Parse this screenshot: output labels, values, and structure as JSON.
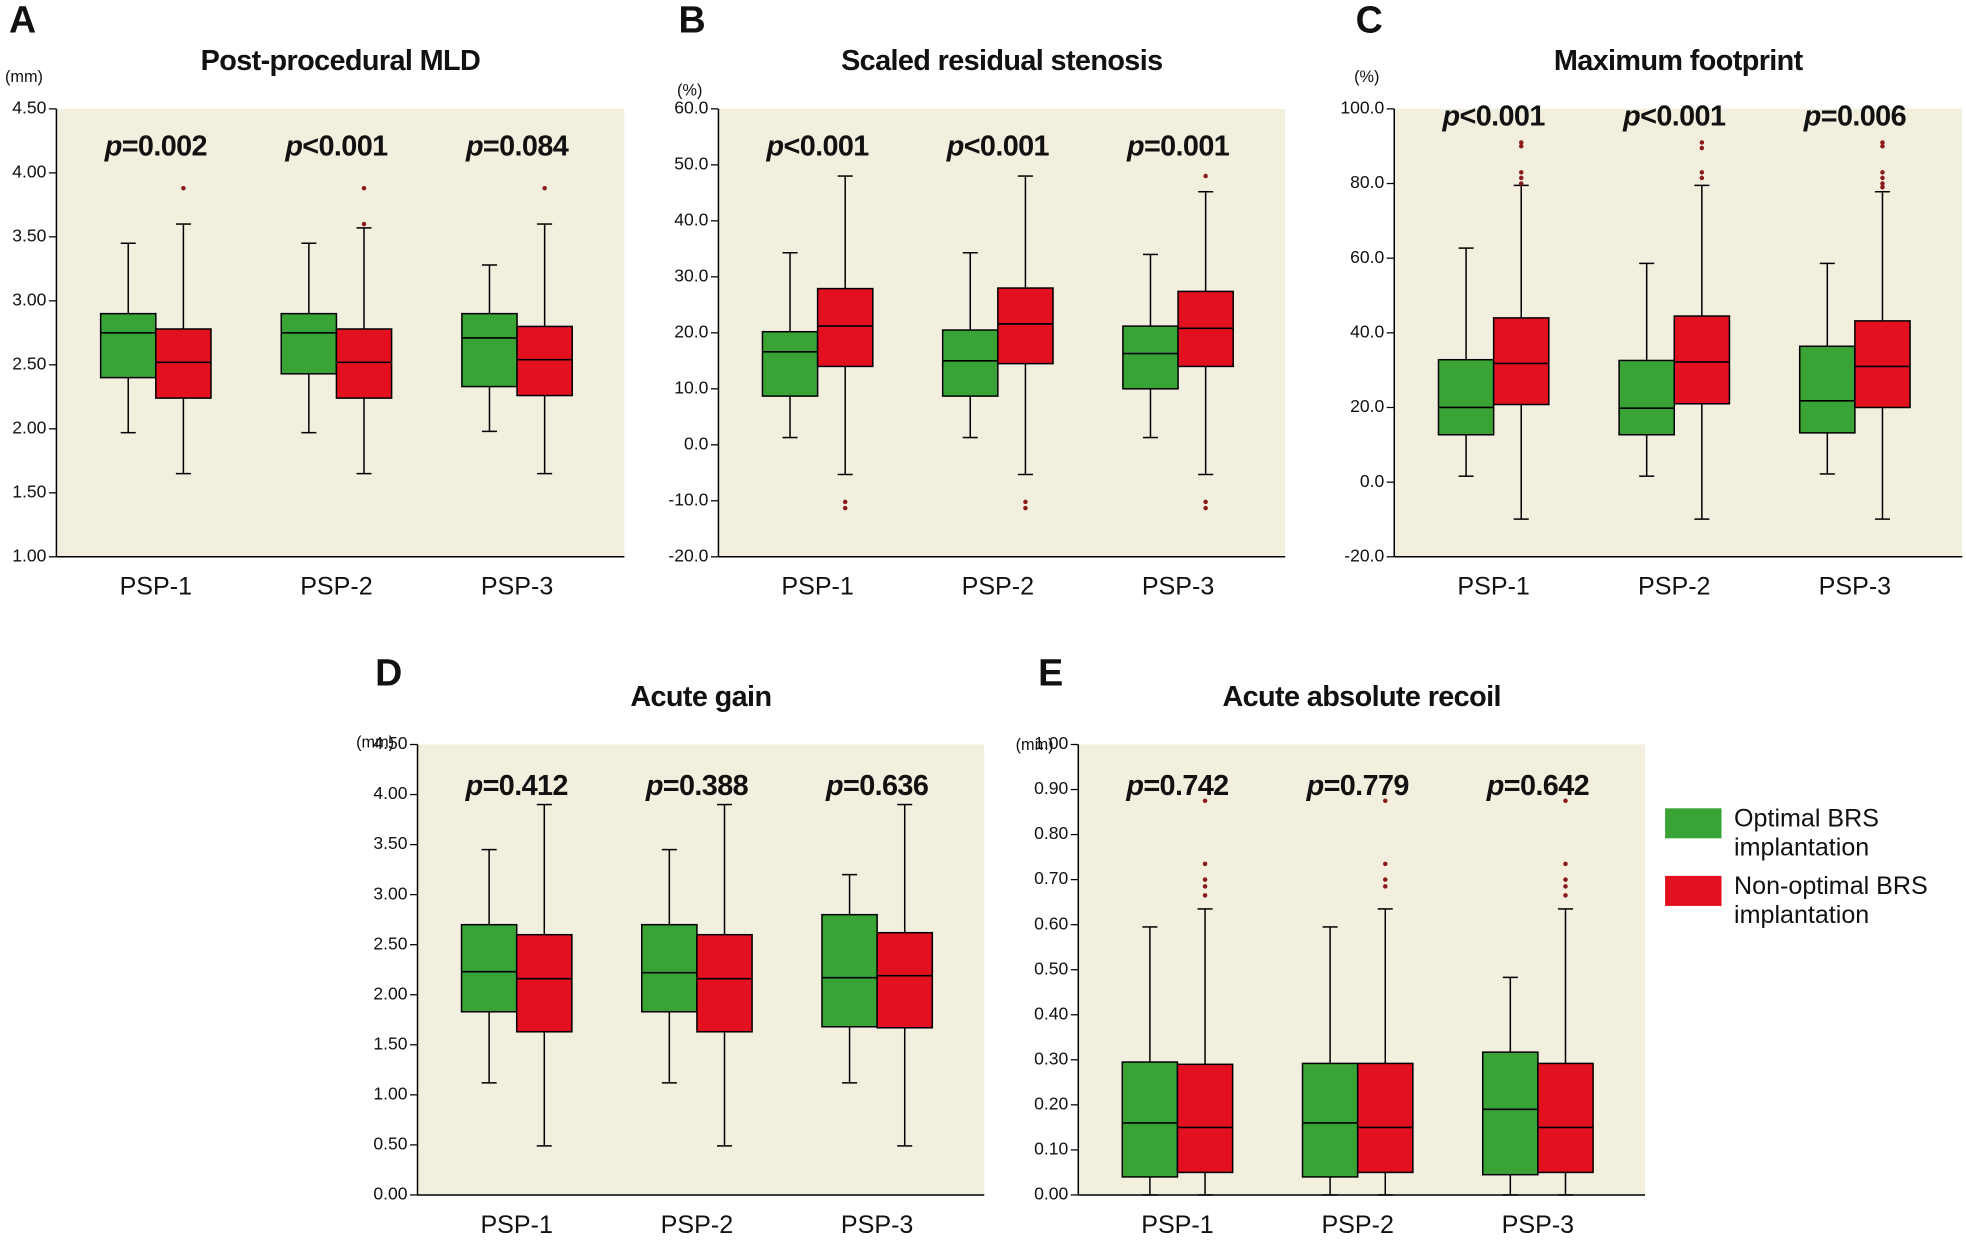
{
  "chart_data": [
    {
      "type": "box",
      "panel": "A",
      "title": "Post-procedural MLD",
      "y_label": "(mm)",
      "categories": [
        "PSP-1",
        "PSP-2",
        "PSP-3"
      ],
      "annotations": [
        "p=0.002",
        "p<0.001",
        "p=0.084"
      ],
      "ylim": [
        1.0,
        4.5
      ],
      "yticks": [
        {
          "value": 1.0,
          "label": "1.00"
        },
        {
          "value": 1.5,
          "label": "1.50"
        },
        {
          "value": 2.0,
          "label": "2.00"
        },
        {
          "value": 2.5,
          "label": "2.50"
        },
        {
          "value": 3.0,
          "label": "3.00"
        },
        {
          "value": 3.5,
          "label": "3.50"
        },
        {
          "value": 4.0,
          "label": "4.00"
        },
        {
          "value": 4.5,
          "label": "4.50"
        }
      ],
      "series": [
        {
          "color": "#3aa335",
          "values": [
            {
              "min": 1.97,
              "q1": 2.4,
              "median": 2.75,
              "q3": 2.9,
              "max": 3.45,
              "outliers": []
            },
            {
              "min": 1.97,
              "q1": 2.43,
              "median": 2.75,
              "q3": 2.9,
              "max": 3.45,
              "outliers": []
            },
            {
              "min": 1.98,
              "q1": 2.33,
              "median": 2.71,
              "q3": 2.9,
              "max": 3.28,
              "outliers": []
            }
          ]
        },
        {
          "color": "#e3111f",
          "values": [
            {
              "min": 1.65,
              "q1": 2.24,
              "median": 2.52,
              "q3": 2.78,
              "max": 3.6,
              "outliers": [
                3.88
              ]
            },
            {
              "min": 1.65,
              "q1": 2.24,
              "median": 2.52,
              "q3": 2.78,
              "max": 3.57,
              "outliers": [
                3.88,
                3.6
              ]
            },
            {
              "min": 1.65,
              "q1": 2.26,
              "median": 2.54,
              "q3": 2.8,
              "max": 3.6,
              "outliers": [
                3.88
              ]
            }
          ]
        }
      ]
    },
    {
      "type": "box",
      "panel": "B",
      "title": "Scaled residual stenosis",
      "y_label": "(%)",
      "categories": [
        "PSP-1",
        "PSP-2",
        "PSP-3"
      ],
      "annotations": [
        "p<0.001",
        "p<0.001",
        "p=0.001"
      ],
      "ylim": [
        -20,
        60
      ],
      "yticks": [
        {
          "value": -20,
          "label": "-20.0"
        },
        {
          "value": -10,
          "label": "-10.0"
        },
        {
          "value": 0,
          "label": "0.0"
        },
        {
          "value": 10,
          "label": "10.0"
        },
        {
          "value": 20,
          "label": "20.0"
        },
        {
          "value": 30,
          "label": "30.0"
        },
        {
          "value": 40,
          "label": "40.0"
        },
        {
          "value": 50,
          "label": "50.0"
        },
        {
          "value": 60,
          "label": "60.0"
        }
      ],
      "series": [
        {
          "color": "#3aa335",
          "values": [
            {
              "min": 1.3,
              "q1": 8.7,
              "median": 16.6,
              "q3": 20.2,
              "max": 34.3,
              "outliers": []
            },
            {
              "min": 1.3,
              "q1": 8.7,
              "median": 15.0,
              "q3": 20.5,
              "max": 34.3,
              "outliers": []
            },
            {
              "min": 1.3,
              "q1": 10.0,
              "median": 16.3,
              "q3": 21.2,
              "max": 34.0,
              "outliers": []
            }
          ]
        },
        {
          "color": "#e3111f",
          "values": [
            {
              "min": -5.3,
              "q1": 14.0,
              "median": 21.2,
              "q3": 27.9,
              "max": 48.0,
              "outliers": [
                -10.2,
                -11.3
              ]
            },
            {
              "min": -5.3,
              "q1": 14.5,
              "median": 21.6,
              "q3": 28.0,
              "max": 48.0,
              "outliers": [
                -10.2,
                -11.3
              ]
            },
            {
              "min": -5.3,
              "q1": 14.0,
              "median": 20.8,
              "q3": 27.4,
              "max": 45.2,
              "outliers": [
                48.0,
                -10.2,
                -11.3
              ]
            }
          ]
        }
      ]
    },
    {
      "type": "box",
      "panel": "C",
      "title": "Maximum footprint",
      "y_label": "(%)",
      "categories": [
        "PSP-1",
        "PSP-2",
        "PSP-3"
      ],
      "annotations": [
        "p<0.001",
        "p<0.001",
        "p=0.006"
      ],
      "ylim": [
        -20,
        100
      ],
      "yticks": [
        {
          "value": -20,
          "label": "-20.0"
        },
        {
          "value": 0,
          "label": "0.0"
        },
        {
          "value": 20,
          "label": "20.0"
        },
        {
          "value": 40,
          "label": "40.0"
        },
        {
          "value": 60,
          "label": "60.0"
        },
        {
          "value": 80,
          "label": "80.0"
        },
        {
          "value": 100,
          "label": "100.0"
        }
      ],
      "series": [
        {
          "color": "#3aa335",
          "values": [
            {
              "min": 1.6,
              "q1": 12.7,
              "median": 20.0,
              "q3": 32.8,
              "max": 62.7,
              "outliers": []
            },
            {
              "min": 1.6,
              "q1": 12.7,
              "median": 19.8,
              "q3": 32.6,
              "max": 58.6,
              "outliers": []
            },
            {
              "min": 2.2,
              "q1": 13.2,
              "median": 21.8,
              "q3": 36.4,
              "max": 58.6,
              "outliers": []
            }
          ]
        },
        {
          "color": "#e3111f",
          "values": [
            {
              "min": -9.9,
              "q1": 20.8,
              "median": 31.8,
              "q3": 44.0,
              "max": 79.5,
              "outliers": [
                91,
                90,
                83,
                81.5,
                80
              ]
            },
            {
              "min": -9.9,
              "q1": 21.0,
              "median": 32.2,
              "q3": 44.5,
              "max": 79.5,
              "outliers": [
                91,
                89.5,
                83,
                81.5
              ]
            },
            {
              "min": -9.9,
              "q1": 20.0,
              "median": 31.0,
              "q3": 43.2,
              "max": 77.8,
              "outliers": [
                91,
                90,
                83,
                81.5,
                80,
                79
              ]
            }
          ]
        }
      ]
    },
    {
      "type": "box",
      "panel": "D",
      "title": "Acute gain",
      "y_label": "(mm)",
      "categories": [
        "PSP-1",
        "PSP-2",
        "PSP-3"
      ],
      "annotations": [
        "p=0.412",
        "p=0.388",
        "p=0.636"
      ],
      "ylim": [
        0,
        4.5
      ],
      "yticks": [
        {
          "value": 0,
          "label": "0.00"
        },
        {
          "value": 0.5,
          "label": "0.50"
        },
        {
          "value": 1.0,
          "label": "1.00"
        },
        {
          "value": 1.5,
          "label": "1.50"
        },
        {
          "value": 2.0,
          "label": "2.00"
        },
        {
          "value": 2.5,
          "label": "2.50"
        },
        {
          "value": 3.0,
          "label": "3.00"
        },
        {
          "value": 3.5,
          "label": "3.50"
        },
        {
          "value": 4.0,
          "label": "4.00"
        },
        {
          "value": 4.5,
          "label": "4.50"
        }
      ],
      "series": [
        {
          "color": "#3aa335",
          "values": [
            {
              "min": 1.12,
              "q1": 1.83,
              "median": 2.23,
              "q3": 2.7,
              "max": 3.45,
              "outliers": []
            },
            {
              "min": 1.12,
              "q1": 1.83,
              "median": 2.22,
              "q3": 2.7,
              "max": 3.45,
              "outliers": []
            },
            {
              "min": 1.12,
              "q1": 1.68,
              "median": 2.17,
              "q3": 2.8,
              "max": 3.2,
              "outliers": []
            }
          ]
        },
        {
          "color": "#e3111f",
          "values": [
            {
              "min": 0.49,
              "q1": 1.63,
              "median": 2.16,
              "q3": 2.6,
              "max": 3.9,
              "outliers": []
            },
            {
              "min": 0.49,
              "q1": 1.63,
              "median": 2.16,
              "q3": 2.6,
              "max": 3.9,
              "outliers": []
            },
            {
              "min": 0.49,
              "q1": 1.67,
              "median": 2.19,
              "q3": 2.62,
              "max": 3.9,
              "outliers": []
            }
          ]
        }
      ]
    },
    {
      "type": "box",
      "panel": "E",
      "title": "Acute absolute recoil",
      "y_label": "(mm)",
      "categories": [
        "PSP-1",
        "PSP-2",
        "PSP-3"
      ],
      "annotations": [
        "p=0.742",
        "p=0.779",
        "p=0.642"
      ],
      "ylim": [
        0,
        1.0
      ],
      "yticks": [
        {
          "value": 0,
          "label": "0.00"
        },
        {
          "value": 0.1,
          "label": "0.10"
        },
        {
          "value": 0.2,
          "label": "0.20"
        },
        {
          "value": 0.3,
          "label": "0.30"
        },
        {
          "value": 0.4,
          "label": "0.40"
        },
        {
          "value": 0.5,
          "label": "0.50"
        },
        {
          "value": 0.6,
          "label": "0.60"
        },
        {
          "value": 0.7,
          "label": "0.70"
        },
        {
          "value": 0.8,
          "label": "0.80"
        },
        {
          "value": 0.9,
          "label": "0.90"
        },
        {
          "value": 1.0,
          "label": "1.00"
        }
      ],
      "legend": "right",
      "series": [
        {
          "name": "Optimal BRS implantation",
          "color": "#3aa335",
          "values": [
            {
              "min": 0.0,
              "q1": 0.04,
              "median": 0.16,
              "q3": 0.295,
              "max": 0.595,
              "outliers": []
            },
            {
              "min": 0.0,
              "q1": 0.04,
              "median": 0.16,
              "q3": 0.292,
              "max": 0.595,
              "outliers": []
            },
            {
              "min": 0.0,
              "q1": 0.045,
              "median": 0.19,
              "q3": 0.317,
              "max": 0.483,
              "outliers": []
            }
          ]
        },
        {
          "name": "Non-optimal BRS implantation",
          "color": "#e3111f",
          "values": [
            {
              "min": 0.0,
              "q1": 0.05,
              "median": 0.15,
              "q3": 0.29,
              "max": 0.635,
              "outliers": [
                0.875,
                0.735,
                0.7,
                0.685,
                0.665
              ]
            },
            {
              "min": 0.0,
              "q1": 0.05,
              "median": 0.15,
              "q3": 0.292,
              "max": 0.635,
              "outliers": [
                0.875,
                0.735,
                0.7,
                0.685
              ]
            },
            {
              "min": 0.0,
              "q1": 0.05,
              "median": 0.15,
              "q3": 0.292,
              "max": 0.635,
              "outliers": [
                0.875,
                0.735,
                0.7,
                0.685,
                0.665
              ]
            }
          ]
        }
      ]
    }
  ]
}
